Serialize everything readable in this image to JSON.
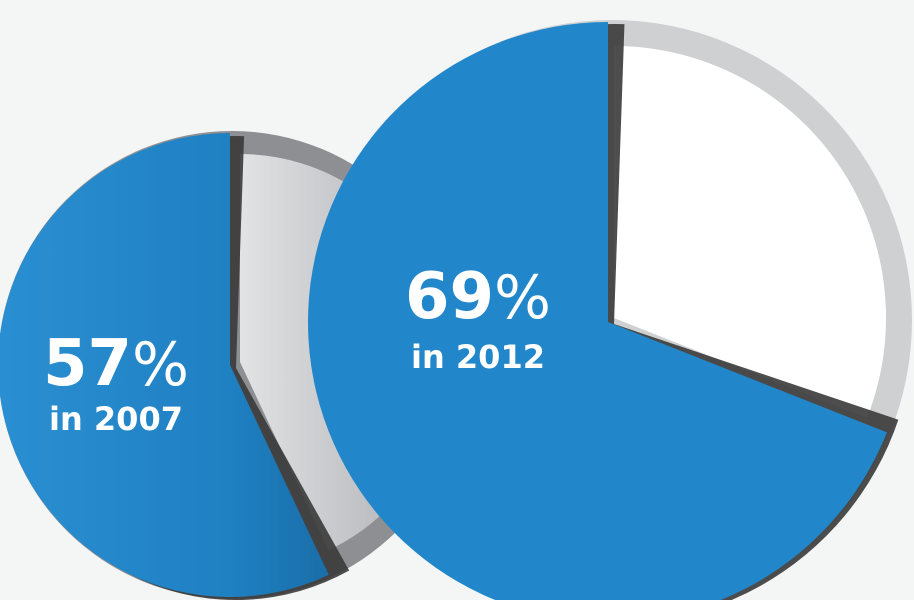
{
  "chart_data": [
    {
      "type": "pie",
      "value": 57,
      "unit": "%",
      "year_label": "in 2007",
      "colors": {
        "value": "#1f84c6",
        "rest": "#c9cacd",
        "shadow": "#3a3a3a"
      }
    },
    {
      "type": "pie",
      "value": 69,
      "unit": "%",
      "year_label": "in 2012",
      "colors": {
        "value": "#2287ca",
        "rest": "#ffffff",
        "rim": "#cfd0d2",
        "shadow": "#3a3a3a"
      }
    }
  ]
}
